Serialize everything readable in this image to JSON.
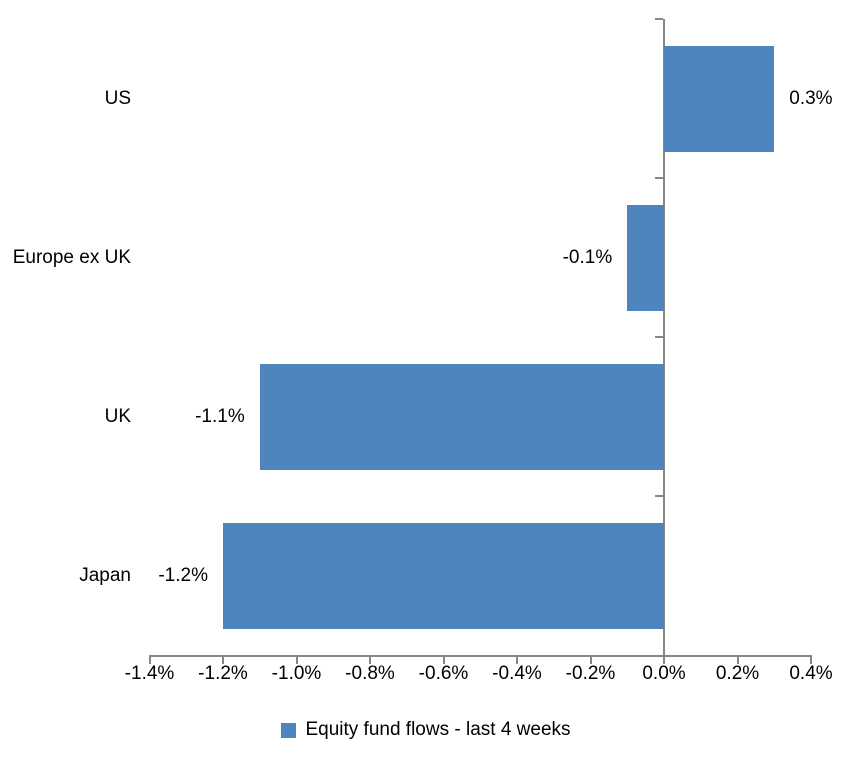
{
  "chart_data": {
    "type": "bar",
    "orientation": "horizontal",
    "title": "",
    "xlabel": "",
    "ylabel": "",
    "categories": [
      "US",
      "Europe ex UK",
      "UK",
      "Japan"
    ],
    "values": [
      0.3,
      -0.1,
      -1.1,
      -1.2
    ],
    "data_labels": [
      "0.3%",
      "-0.1%",
      "-1.1%",
      "-1.2%"
    ],
    "series": [
      {
        "name": "Equity fund flows - last 4 weeks",
        "color": "#4E85BE"
      }
    ],
    "xlim": [
      -1.4,
      0.4
    ],
    "x_ticks": [
      {
        "value": -1.4,
        "label": "-1.4%"
      },
      {
        "value": -1.2,
        "label": "-1.2%"
      },
      {
        "value": -1.0,
        "label": "-1.0%"
      },
      {
        "value": -0.8,
        "label": "-0.8%"
      },
      {
        "value": -0.6,
        "label": "-0.6%"
      },
      {
        "value": -0.4,
        "label": "-0.4%"
      },
      {
        "value": -0.2,
        "label": "-0.2%"
      },
      {
        "value": 0.0,
        "label": "0.0%"
      },
      {
        "value": 0.2,
        "label": "0.2%"
      },
      {
        "value": 0.4,
        "label": "0.4%"
      }
    ],
    "grid": false,
    "legend_position": "bottom",
    "axis_color": "#868686",
    "text_color": "#000000",
    "background": "#FFFFFF"
  },
  "legend": {
    "label": "Equity fund flows - last 4 weeks",
    "marker_color": "#4E85BE"
  }
}
